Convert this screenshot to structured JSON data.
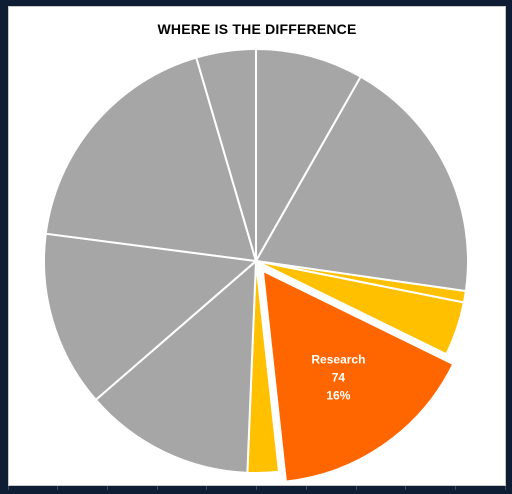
{
  "chart_data": {
    "type": "pie",
    "title": "WHERE IS THE DIFFERENCE",
    "total": 462,
    "start_angle_deg": 0,
    "direction": "clockwise",
    "slices": [
      {
        "value": 38,
        "color": "#a6a6a6",
        "explode": false
      },
      {
        "value": 88,
        "color": "#a6a6a6",
        "explode": false
      },
      {
        "value": 4,
        "color": "#ffc000",
        "explode": false
      },
      {
        "value": 19,
        "color": "#ffc000",
        "explode": false
      },
      {
        "value": 74,
        "color": "#ff6600",
        "explode": true,
        "label": {
          "name": "Research",
          "value": "74",
          "percent": "16%"
        }
      },
      {
        "value": 11,
        "color": "#ffc000",
        "explode": false
      },
      {
        "value": 60,
        "color": "#a6a6a6",
        "explode": false
      },
      {
        "value": 62,
        "color": "#a6a6a6",
        "explode": false
      },
      {
        "value": 85,
        "color": "#a6a6a6",
        "explode": false
      },
      {
        "value": 21,
        "color": "#a6a6a6",
        "explode": false
      }
    ]
  },
  "colors": {
    "background": "#0e1d33",
    "panel": "#ffffff",
    "slice_border": "#ffffff"
  }
}
